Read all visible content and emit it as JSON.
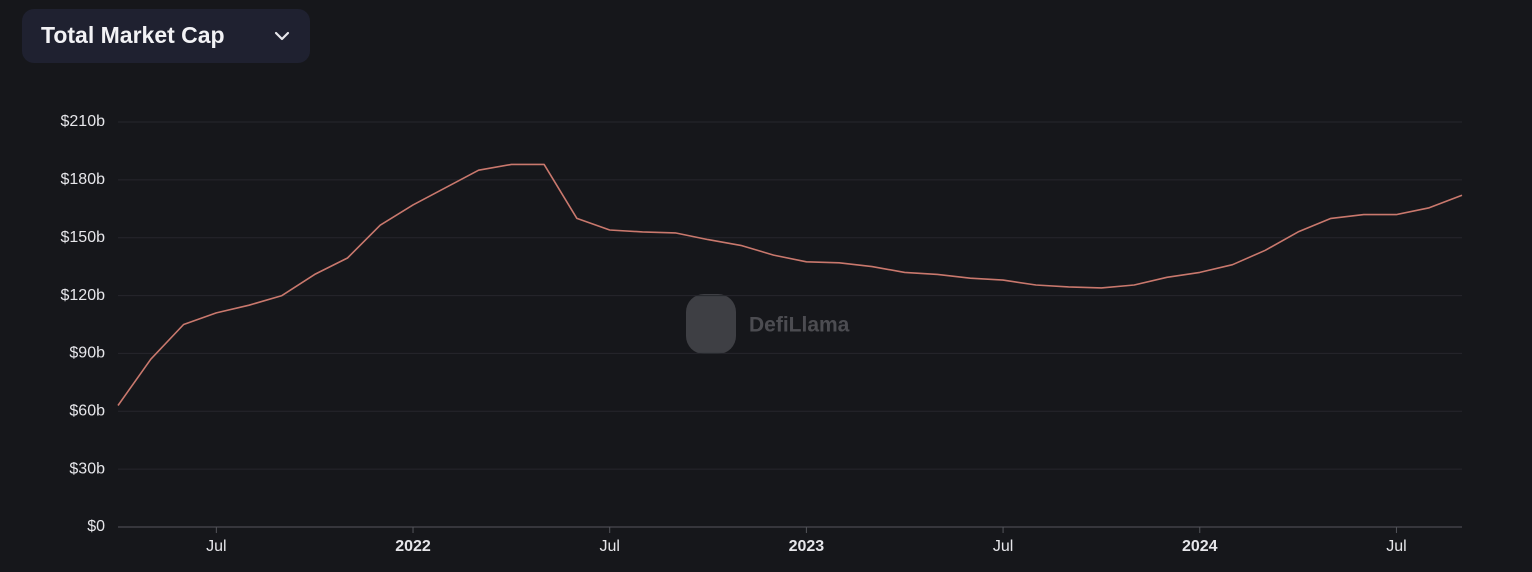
{
  "chart_data": {
    "type": "line",
    "title": "Total Market Cap",
    "watermark": "DefiLlama",
    "color": "#c9786d",
    "x": [
      "2021-04",
      "2021-05",
      "2021-06",
      "2021-07",
      "2021-08",
      "2021-09",
      "2021-10",
      "2021-11",
      "2021-12",
      "2022-01",
      "2022-02",
      "2022-03",
      "2022-04",
      "2022-05",
      "2022-06",
      "2022-07",
      "2022-08",
      "2022-09",
      "2022-10",
      "2022-11",
      "2022-12",
      "2023-01",
      "2023-02",
      "2023-03",
      "2023-04",
      "2023-05",
      "2023-06",
      "2023-07",
      "2023-08",
      "2023-09",
      "2023-10",
      "2023-11",
      "2023-12",
      "2024-01",
      "2024-02",
      "2024-03",
      "2024-04",
      "2024-05",
      "2024-06",
      "2024-07",
      "2024-08",
      "2024-09"
    ],
    "values": [
      63,
      87,
      105,
      111,
      115,
      120,
      131,
      139.5,
      156.5,
      167,
      176,
      185,
      188,
      188,
      160,
      154,
      153,
      152.5,
      149,
      146,
      141,
      137.5,
      137,
      135,
      132,
      131,
      129,
      128,
      125.5,
      124.5,
      124,
      125.5,
      129.5,
      132,
      136,
      143.5,
      153,
      160,
      162,
      162,
      165.5,
      172
    ],
    "xlim": [
      "2021-04",
      "2024-09"
    ],
    "xticks": [
      {
        "value": "2021-07",
        "label": "Jul"
      },
      {
        "value": "2022-01",
        "label": "2022"
      },
      {
        "value": "2022-07",
        "label": "Jul"
      },
      {
        "value": "2023-01",
        "label": "2023"
      },
      {
        "value": "2023-07",
        "label": "Jul"
      },
      {
        "value": "2024-01",
        "label": "2024"
      },
      {
        "value": "2024-07",
        "label": "Jul"
      }
    ],
    "ylim": [
      0,
      210
    ],
    "yticks": [
      {
        "value": 0,
        "label": "$0"
      },
      {
        "value": 30,
        "label": "$30b"
      },
      {
        "value": 60,
        "label": "$60b"
      },
      {
        "value": 90,
        "label": "$90b"
      },
      {
        "value": 120,
        "label": "$120b"
      },
      {
        "value": 150,
        "label": "$150b"
      },
      {
        "value": 180,
        "label": "$180b"
      },
      {
        "value": 210,
        "label": "$210b"
      }
    ],
    "grid": true
  }
}
